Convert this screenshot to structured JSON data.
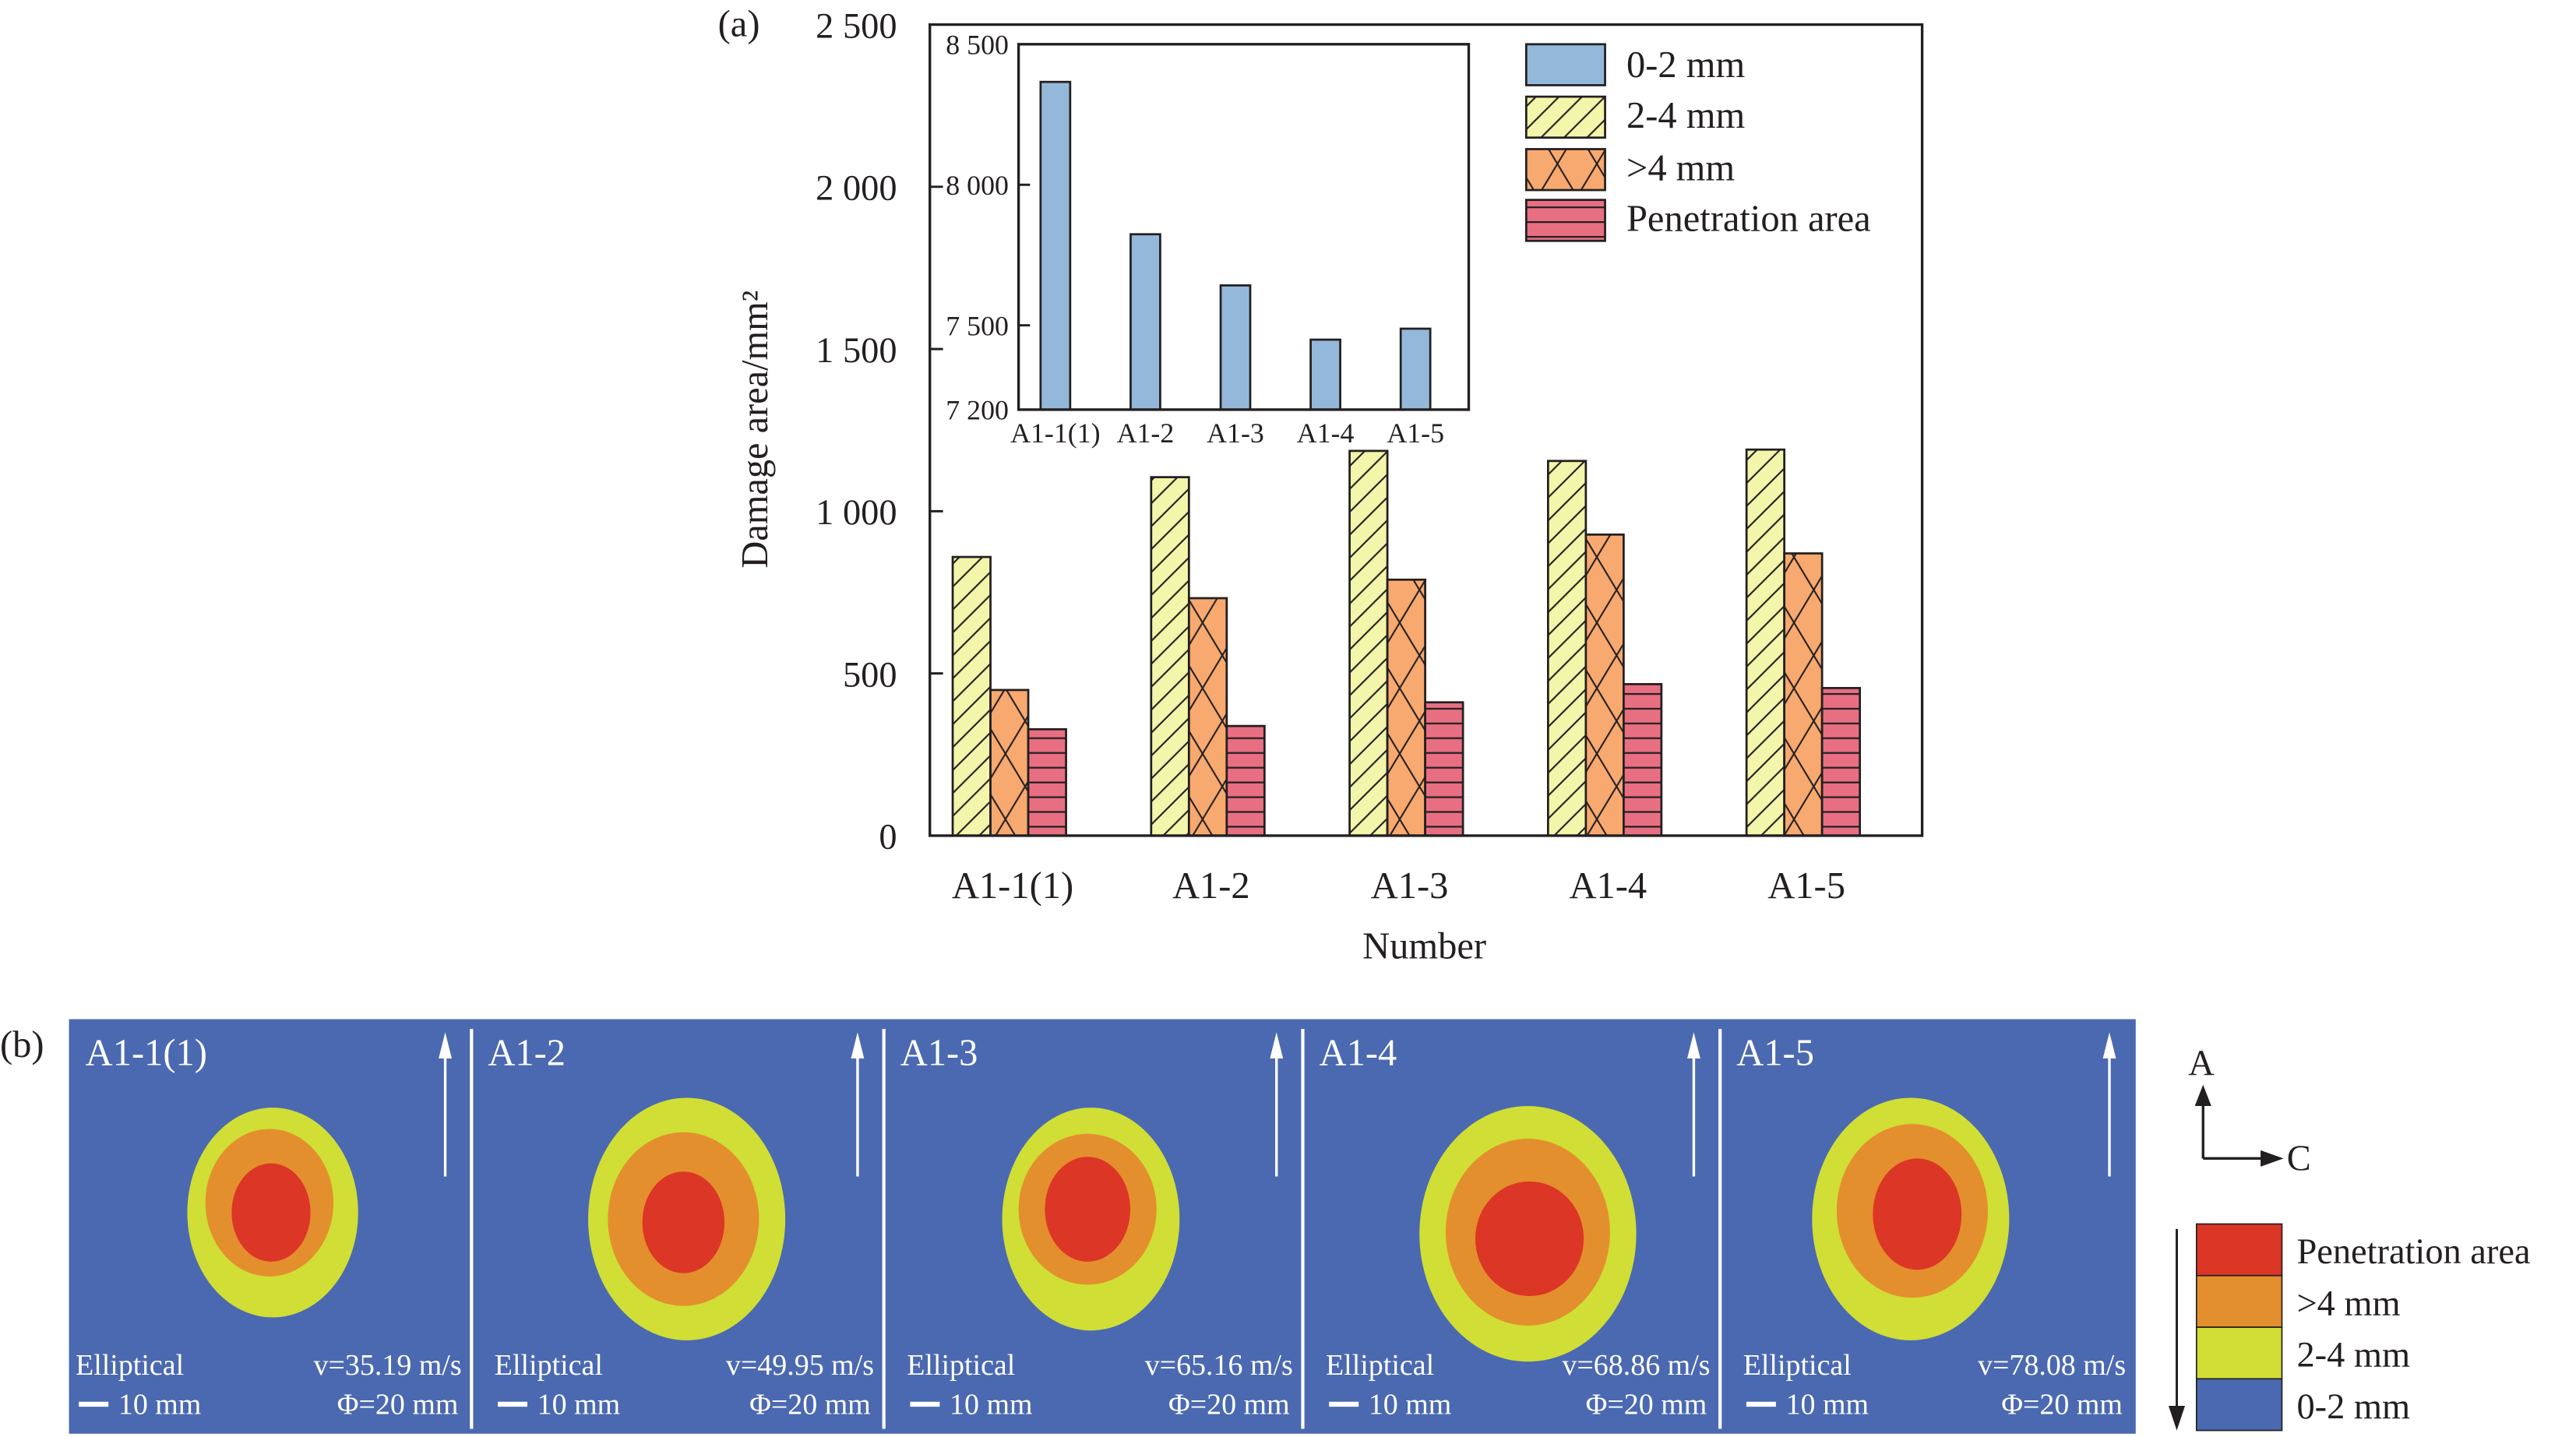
{
  "figure": {
    "panel_a_label": "(a)",
    "panel_b_label": "(b)"
  },
  "chart_data": [
    {
      "type": "bar",
      "title": "",
      "xlabel": "Number",
      "ylabel": "Damage area/mm²",
      "ylim": [
        0,
        2500
      ],
      "yticks": [
        0,
        500,
        1000,
        1500,
        2000,
        2500
      ],
      "ytick_labels": [
        "0",
        "500",
        "1 000",
        "1 500",
        "2 000",
        "2 500"
      ],
      "categories": [
        "A1-1(1)",
        "A1-2",
        "A1-3",
        "A1-4",
        "A1-5"
      ],
      "grid": false,
      "legend_position": "top-right",
      "series": [
        {
          "name": "0-2 mm",
          "color": "#94b8d9",
          "pattern": "solid",
          "values": null,
          "note": "shown in inset"
        },
        {
          "name": "2-4 mm",
          "color": "#f3f5aa",
          "pattern": "diagonal",
          "values": [
            859,
            1105,
            1186,
            1155,
            1190
          ]
        },
        {
          "name": ">4 mm",
          "color": "#f7a96f",
          "pattern": "crosshatch",
          "values": [
            449,
            732,
            789,
            928,
            870
          ]
        },
        {
          "name": "Penetration area",
          "color": "#e86f82",
          "pattern": "horizontal",
          "values": [
            328,
            338,
            411,
            467,
            455
          ]
        }
      ]
    },
    {
      "type": "bar",
      "title": "inset: 0-2 mm",
      "xlabel": "",
      "ylabel": "",
      "ylim": [
        7200,
        8500
      ],
      "yticks": [
        7200,
        7500,
        8000,
        8500
      ],
      "ytick_labels": [
        "7 200",
        "7 500",
        "8 000",
        "8 500"
      ],
      "categories": [
        "A1-1(1)",
        "A1-2",
        "A1-3",
        "A1-4",
        "A1-5"
      ],
      "series": [
        {
          "name": "0-2 mm",
          "color": "#94b8d9",
          "values": [
            8366,
            7824,
            7642,
            7449,
            7488
          ]
        }
      ]
    }
  ],
  "damage_maps": {
    "panels": [
      {
        "title": "A1-1(1)",
        "shape": "Elliptical",
        "velocity": "v=35.19 m/s",
        "scale": "10 mm",
        "diameter": "Φ=20 mm"
      },
      {
        "title": "A1-2",
        "shape": "Elliptical",
        "velocity": "v=49.95 m/s",
        "scale": "10 mm",
        "diameter": "Φ=20 mm"
      },
      {
        "title": "A1-3",
        "shape": "Elliptical",
        "velocity": "v=65.16 m/s",
        "scale": "10 mm",
        "diameter": "Φ=20 mm"
      },
      {
        "title": "A1-4",
        "shape": "Elliptical",
        "velocity": "v=68.86 m/s",
        "scale": "10 mm",
        "diameter": "Φ=20 mm"
      },
      {
        "title": "A1-5",
        "shape": "Elliptical",
        "velocity": "v=78.08 m/s",
        "scale": "10 mm",
        "diameter": "Φ=20 mm"
      }
    ],
    "axes_indicator": {
      "up": "A",
      "right": "C"
    },
    "color_key": [
      {
        "label": "Penetration area",
        "color": "#dc3626"
      },
      {
        "label": ">4 mm",
        "color": "#e48f2d"
      },
      {
        "label": "2-4 mm",
        "color": "#d0de35"
      },
      {
        "label": "0-2 mm",
        "color": "#4b69b1"
      }
    ],
    "background_color": "#4b69b1"
  }
}
